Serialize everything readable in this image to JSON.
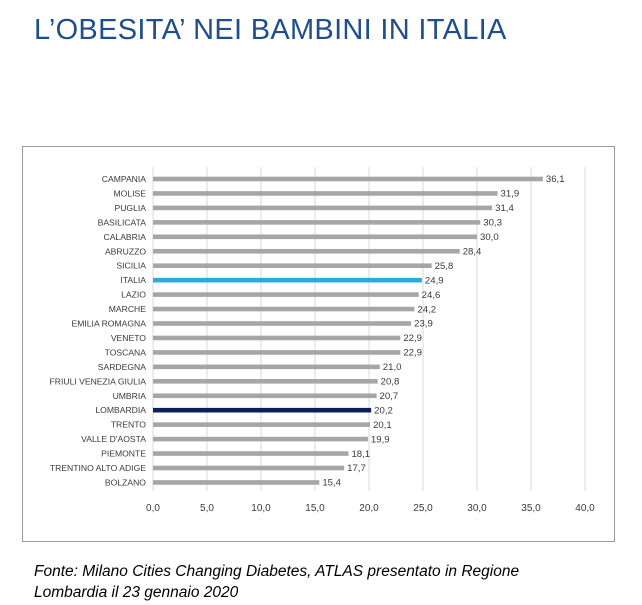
{
  "title": "L’OBESITA’ NEI BAMBINI IN ITALIA",
  "source_line1": "Fonte: Milano Cities Changing Diabetes, ATLAS presentato in Regione",
  "source_line2": "Lombardia il 23 gennaio 2020",
  "chart_data": {
    "type": "bar",
    "orientation": "horizontal",
    "title": "",
    "xlabel": "",
    "ylabel": "",
    "categories": [
      "CAMPANIA",
      "MOLISE",
      "PUGLIA",
      "BASILICATA",
      "CALABRIA",
      "ABRUZZO",
      "SICILIA",
      "ITALIA",
      "LAZIO",
      "MARCHE",
      "EMILIA ROMAGNA",
      "VENETO",
      "TOSCANA",
      "SARDEGNA",
      "FRIULI VENEZIA GIULIA",
      "UMBRIA",
      "LOMBARDIA",
      "TRENTO",
      "VALLE D'AOSTA",
      "PIEMONTE",
      "TRENTINO ALTO ADIGE",
      "BOLZANO"
    ],
    "values": [
      36.1,
      31.9,
      31.4,
      30.3,
      30.0,
      28.4,
      25.8,
      24.9,
      24.6,
      24.2,
      23.9,
      22.9,
      22.9,
      21.0,
      20.8,
      20.7,
      20.2,
      20.1,
      19.9,
      18.1,
      17.7,
      15.4
    ],
    "value_labels": [
      "36,1",
      "31,9",
      "31,4",
      "30,3",
      "30,0",
      "28,4",
      "25,8",
      "24,9",
      "24,6",
      "24,2",
      "23,9",
      "22,9",
      "22,9",
      "21,0",
      "20,8",
      "20,7",
      "20,2",
      "20,1",
      "19,9",
      "18,1",
      "17,7",
      "15,4"
    ],
    "xlim": [
      0,
      40
    ],
    "xticks": [
      0,
      5,
      10,
      15,
      20,
      25,
      30,
      35,
      40
    ],
    "xtick_labels": [
      "0,0",
      "5,0",
      "10,0",
      "15,0",
      "20,0",
      "25,0",
      "30,0",
      "35,0",
      "40,0"
    ],
    "grid": true,
    "legend": "none",
    "colors": {
      "default": "#a6a6a6",
      "highlight_italia": "#29abe2",
      "highlight_lombardia": "#0b1f5c",
      "grid": "#d9d9d9"
    },
    "highlights": {
      "ITALIA": "highlight_italia",
      "LOMBARDIA": "highlight_lombardia"
    }
  }
}
